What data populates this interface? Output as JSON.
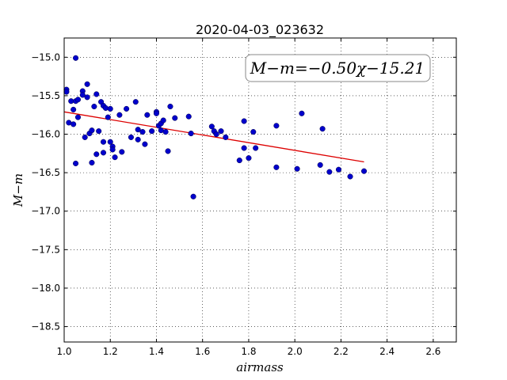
{
  "chart_data": {
    "type": "scatter",
    "title": "2020-04-03_023632",
    "xlabel": "airmass",
    "ylabel": "M−m",
    "xlim": [
      1.0,
      2.7
    ],
    "ylim": [
      -18.7,
      -14.75
    ],
    "y_inverted": true,
    "xticks": [
      1.0,
      1.2,
      1.4,
      1.6,
      1.8,
      2.0,
      2.2,
      2.4,
      2.6
    ],
    "xtick_labels": [
      "1.0",
      "1.2",
      "1.4",
      "1.6",
      "1.8",
      "2.0",
      "2.2",
      "2.4",
      "2.6"
    ],
    "yticks": [
      -15.0,
      -15.5,
      -16.0,
      -16.5,
      -17.0,
      -17.5,
      -18.0,
      -18.5
    ],
    "ytick_labels": [
      "−15.0",
      "−15.5",
      "−16.0",
      "−16.5",
      "−17.0",
      "−17.5",
      "−18.0",
      "−18.5"
    ],
    "grid": true,
    "annotation": "M−m=−0.50χ−15.21",
    "annotation_placement": "top-right",
    "colors": {
      "points": "#0000cc",
      "fit": "#dd0000"
    },
    "fit_line": {
      "x": [
        1.0,
        2.3
      ],
      "y": [
        -15.71,
        -16.36
      ]
    },
    "points": [
      {
        "x": 1.01,
        "y": -15.42
      },
      {
        "x": 1.01,
        "y": -15.45
      },
      {
        "x": 1.02,
        "y": -15.85
      },
      {
        "x": 1.03,
        "y": -15.57
      },
      {
        "x": 1.04,
        "y": -15.68
      },
      {
        "x": 1.04,
        "y": -15.87
      },
      {
        "x": 1.05,
        "y": -15.01
      },
      {
        "x": 1.05,
        "y": -15.57
      },
      {
        "x": 1.05,
        "y": -16.38
      },
      {
        "x": 1.06,
        "y": -15.55
      },
      {
        "x": 1.06,
        "y": -15.78
      },
      {
        "x": 1.08,
        "y": -15.44
      },
      {
        "x": 1.08,
        "y": -15.49
      },
      {
        "x": 1.09,
        "y": -16.04
      },
      {
        "x": 1.1,
        "y": -15.35
      },
      {
        "x": 1.1,
        "y": -15.52
      },
      {
        "x": 1.11,
        "y": -15.99
      },
      {
        "x": 1.12,
        "y": -15.95
      },
      {
        "x": 1.12,
        "y": -16.37
      },
      {
        "x": 1.13,
        "y": -15.64
      },
      {
        "x": 1.14,
        "y": -15.48
      },
      {
        "x": 1.14,
        "y": -16.26
      },
      {
        "x": 1.15,
        "y": -15.96
      },
      {
        "x": 1.16,
        "y": -15.58
      },
      {
        "x": 1.17,
        "y": -15.63
      },
      {
        "x": 1.17,
        "y": -16.1
      },
      {
        "x": 1.17,
        "y": -16.24
      },
      {
        "x": 1.18,
        "y": -15.66
      },
      {
        "x": 1.19,
        "y": -15.78
      },
      {
        "x": 1.2,
        "y": -15.67
      },
      {
        "x": 1.2,
        "y": -16.1
      },
      {
        "x": 1.21,
        "y": -16.16
      },
      {
        "x": 1.21,
        "y": -16.2
      },
      {
        "x": 1.22,
        "y": -16.3
      },
      {
        "x": 1.24,
        "y": -15.75
      },
      {
        "x": 1.25,
        "y": -16.23
      },
      {
        "x": 1.27,
        "y": -15.67
      },
      {
        "x": 1.29,
        "y": -16.04
      },
      {
        "x": 1.31,
        "y": -15.58
      },
      {
        "x": 1.32,
        "y": -15.94
      },
      {
        "x": 1.32,
        "y": -16.07
      },
      {
        "x": 1.34,
        "y": -15.97
      },
      {
        "x": 1.35,
        "y": -16.13
      },
      {
        "x": 1.36,
        "y": -15.75
      },
      {
        "x": 1.38,
        "y": -15.96
      },
      {
        "x": 1.4,
        "y": -15.71
      },
      {
        "x": 1.4,
        "y": -15.73
      },
      {
        "x": 1.41,
        "y": -15.89
      },
      {
        "x": 1.42,
        "y": -15.86
      },
      {
        "x": 1.42,
        "y": -15.95
      },
      {
        "x": 1.43,
        "y": -15.82
      },
      {
        "x": 1.44,
        "y": -15.97
      },
      {
        "x": 1.45,
        "y": -16.22
      },
      {
        "x": 1.46,
        "y": -15.64
      },
      {
        "x": 1.48,
        "y": -15.79
      },
      {
        "x": 1.54,
        "y": -15.77
      },
      {
        "x": 1.55,
        "y": -15.99
      },
      {
        "x": 1.56,
        "y": -16.81
      },
      {
        "x": 1.64,
        "y": -15.9
      },
      {
        "x": 1.65,
        "y": -15.96
      },
      {
        "x": 1.66,
        "y": -16.0
      },
      {
        "x": 1.68,
        "y": -15.96
      },
      {
        "x": 1.7,
        "y": -16.04
      },
      {
        "x": 1.76,
        "y": -16.34
      },
      {
        "x": 1.78,
        "y": -15.83
      },
      {
        "x": 1.78,
        "y": -16.18
      },
      {
        "x": 1.8,
        "y": -16.31
      },
      {
        "x": 1.82,
        "y": -15.97
      },
      {
        "x": 1.83,
        "y": -16.18
      },
      {
        "x": 1.92,
        "y": -15.89
      },
      {
        "x": 1.92,
        "y": -16.43
      },
      {
        "x": 2.01,
        "y": -16.45
      },
      {
        "x": 2.03,
        "y": -15.73
      },
      {
        "x": 2.11,
        "y": -16.4
      },
      {
        "x": 2.12,
        "y": -15.93
      },
      {
        "x": 2.15,
        "y": -16.49
      },
      {
        "x": 2.19,
        "y": -16.46
      },
      {
        "x": 2.24,
        "y": -16.55
      },
      {
        "x": 2.3,
        "y": -16.48
      }
    ]
  }
}
